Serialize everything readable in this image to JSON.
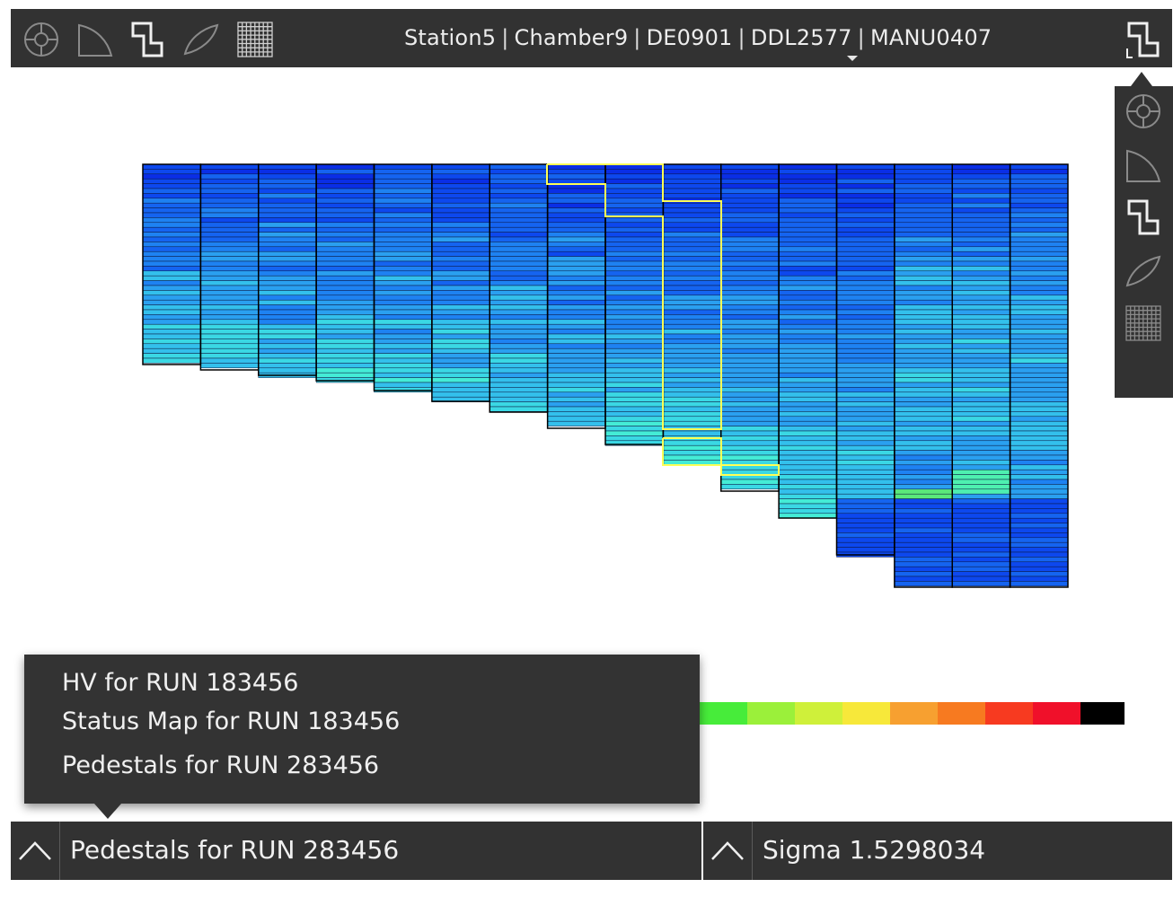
{
  "toolbar": {
    "icons": [
      "station-icon",
      "quadrant-icon",
      "slat-icon",
      "chamber-icon",
      "grid-icon"
    ],
    "breadcrumb": [
      "Station5",
      "Chamber9",
      "DE0901",
      "DDL2577",
      "MANU0407"
    ],
    "active_view_icon": "slat-icon"
  },
  "side_menu": {
    "items": [
      "station-icon",
      "quadrant-icon",
      "slat-icon",
      "chamber-icon",
      "grid-icon"
    ],
    "selected": "slat-icon"
  },
  "heatmap": {
    "columns": 16,
    "cell_colors": [
      "#0a2ee6",
      "#0d48ee",
      "#1564f0",
      "#1e82f2",
      "#2aa0f0",
      "#33c0ec",
      "#3ad8e4",
      "#44ecd6",
      "#4ef0b0",
      "#5ae87a"
    ],
    "highlight_color": "#ffff55"
  },
  "colorbar": {
    "colors": [
      "#47ec3a",
      "#9bf03a",
      "#cff03a",
      "#f7e83a",
      "#f7a030",
      "#f77a20",
      "#f73a20",
      "#f0102a",
      "#000000"
    ]
  },
  "popup": {
    "items": [
      "HV for RUN 183456",
      "Status Map for RUN 183456",
      "Pedestals for RUN 283456"
    ]
  },
  "bottom": {
    "left_label": "Pedestals for RUN 283456",
    "right_label": "Sigma 1.5298034",
    "toggle_icon": "chevron-up-icon"
  }
}
